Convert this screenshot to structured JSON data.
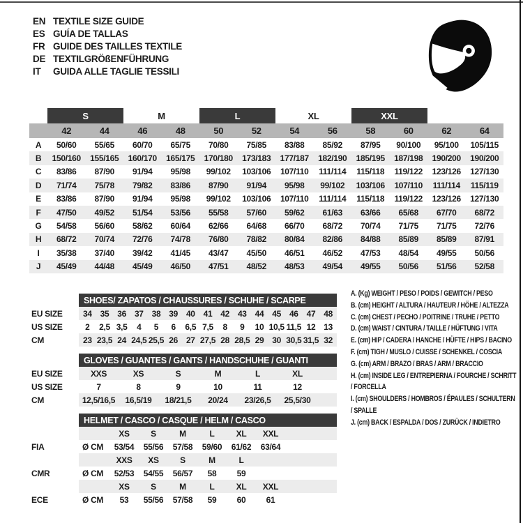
{
  "colors": {
    "dark_bar": "#3a3a3a",
    "header_band": "#b6b6b6",
    "row_stripe": "#ececec",
    "text": "#1c1c1c"
  },
  "header": {
    "languages": [
      {
        "code": "EN",
        "title": "TEXTILE SIZE GUIDE"
      },
      {
        "code": "ES",
        "title": "GUÍA DE TALLAS"
      },
      {
        "code": "FR",
        "title": "GUIDE DES TAILLES TEXTILE"
      },
      {
        "code": "DE",
        "title": "TEXTILGRÖßENFÜHRUNG"
      },
      {
        "code": "IT",
        "title": "GUIDA ALLE TAGLIE TESSILI"
      }
    ],
    "icon": "racing-helmet"
  },
  "main_table": {
    "group_headers": [
      {
        "label": "S",
        "boxed": true
      },
      {
        "label": "M",
        "boxed": false
      },
      {
        "label": "L",
        "boxed": true
      },
      {
        "label": "XL",
        "boxed": false
      },
      {
        "label": "XXL",
        "boxed": true
      }
    ],
    "sizes": [
      "42",
      "44",
      "46",
      "48",
      "50",
      "52",
      "54",
      "56",
      "58",
      "60",
      "62",
      "64"
    ],
    "rows": [
      {
        "label": "A",
        "values": [
          "50/60",
          "55/65",
          "60/70",
          "65/75",
          "70/80",
          "75/85",
          "83/88",
          "85/92",
          "87/95",
          "90/100",
          "95/100",
          "105/115"
        ]
      },
      {
        "label": "B",
        "values": [
          "150/160",
          "155/165",
          "160/170",
          "165/175",
          "170/180",
          "173/183",
          "177/187",
          "182/190",
          "185/195",
          "187/198",
          "190/200",
          "190/200"
        ]
      },
      {
        "label": "C",
        "values": [
          "83/86",
          "87/90",
          "91/94",
          "95/98",
          "99/102",
          "103/106",
          "107/110",
          "111/114",
          "115/118",
          "119/122",
          "123/126",
          "127/130"
        ]
      },
      {
        "label": "D",
        "values": [
          "71/74",
          "75/78",
          "79/82",
          "83/86",
          "87/90",
          "91/94",
          "95/98",
          "99/102",
          "103/106",
          "107/110",
          "111/114",
          "115/119"
        ]
      },
      {
        "label": "E",
        "values": [
          "83/86",
          "87/90",
          "91/94",
          "95/98",
          "99/102",
          "103/106",
          "107/110",
          "111/114",
          "115/118",
          "119/122",
          "123/126",
          "127/130"
        ]
      },
      {
        "label": "F",
        "values": [
          "47/50",
          "49/52",
          "51/54",
          "53/56",
          "55/58",
          "57/60",
          "59/62",
          "61/63",
          "63/66",
          "65/68",
          "67/70",
          "68/72"
        ]
      },
      {
        "label": "G",
        "values": [
          "54/58",
          "56/60",
          "58/62",
          "60/64",
          "62/66",
          "64/68",
          "66/70",
          "68/72",
          "70/74",
          "71/75",
          "71/75",
          "72/76"
        ]
      },
      {
        "label": "H",
        "values": [
          "68/72",
          "70/74",
          "72/76",
          "74/78",
          "76/80",
          "78/82",
          "80/84",
          "82/86",
          "84/88",
          "85/89",
          "85/89",
          "87/91"
        ]
      },
      {
        "label": "I",
        "values": [
          "35/38",
          "37/40",
          "39/42",
          "41/45",
          "43/47",
          "45/50",
          "46/51",
          "46/52",
          "47/53",
          "48/54",
          "49/55",
          "50/56"
        ]
      },
      {
        "label": "J",
        "values": [
          "45/49",
          "44/48",
          "45/49",
          "46/50",
          "47/51",
          "48/52",
          "48/53",
          "49/54",
          "49/55",
          "50/56",
          "51/56",
          "52/58"
        ]
      }
    ]
  },
  "shoes_table": {
    "title": "SHOES/ ZAPATOS / CHAUSSURES / SCHUHE / SCARPE",
    "rows": [
      {
        "label": "EU SIZE",
        "striped": true,
        "values": [
          "34",
          "35",
          "36",
          "37",
          "38",
          "39",
          "40",
          "41",
          "42",
          "43",
          "44",
          "45",
          "46",
          "47",
          "48"
        ]
      },
      {
        "label": "US SIZE",
        "striped": false,
        "values": [
          "2",
          "2,5",
          "3,5",
          "4",
          "5",
          "6",
          "6,5",
          "7,5",
          "8",
          "9",
          "10",
          "10,5",
          "11,5",
          "12",
          "13"
        ]
      },
      {
        "label": "CM",
        "striped": true,
        "values": [
          "23",
          "23,5",
          "24",
          "24,5",
          "25,5",
          "26",
          "27",
          "27,5",
          "28",
          "28,5",
          "29",
          "30",
          "30,5",
          "31,5",
          "32"
        ]
      }
    ]
  },
  "gloves_table": {
    "title": "GLOVES / GUANTES / GANTS / HANDSCHUHE / GUANTI",
    "rows": [
      {
        "label": "EU SIZE",
        "striped": true,
        "values": [
          "XXS",
          "XS",
          "S",
          "M",
          "L",
          "XL"
        ]
      },
      {
        "label": "US SIZE",
        "striped": false,
        "values": [
          "7",
          "8",
          "9",
          "10",
          "11",
          "12"
        ]
      },
      {
        "label": "CM",
        "striped": true,
        "values": [
          "12,5/16,5",
          "16,5/19",
          "18/21,5",
          "20/24",
          "23/26,5",
          "25,5/30"
        ]
      }
    ]
  },
  "helmet_table": {
    "title": "HELMET / CASCO / CASQUE / HELM / CASCO",
    "diameter_label": "Ø CM",
    "sections": [
      {
        "label": "FIA",
        "sizes": [
          "XS",
          "S",
          "M",
          "L",
          "XL",
          "XXL"
        ],
        "values": [
          "53/54",
          "55/56",
          "57/58",
          "59/60",
          "61/62",
          "63/64"
        ]
      },
      {
        "label": "CMR",
        "sizes": [
          "XXS",
          "XS",
          "S",
          "M",
          "L",
          ""
        ],
        "values": [
          "52/53",
          "54/55",
          "56/57",
          "58",
          "59",
          ""
        ]
      },
      {
        "label": "ECE",
        "sizes": [
          "XS",
          "S",
          "M",
          "L",
          "XL",
          "XXL"
        ],
        "values": [
          "53",
          "55/56",
          "57/58",
          "59",
          "60",
          "61"
        ]
      }
    ]
  },
  "legend": {
    "items": [
      "A. (Kg) WEIGHT / PESO / POIDS / GEWITCH / PESO",
      "B. (cm) HEIGHT / ALTURA / HAUTEUR / HÖHE / ALTEZZA",
      "C. (cm) CHEST / PECHO / POITRINE / TRUHE / PETTO",
      "D. (cm) WAIST / CINTURA / TAILLE / HÜFTUNG / VITA",
      "E. (cm) HIP / CADERA / HANCHE / HÜFTE / HIPS / BACINO",
      "F. (cm) TIGH / MUSLO / CUISSE / SCHENKEL / COSCIA",
      "G. (cm) ARM / BRAZO / BRAS / ARM / BRACCIO",
      "H. (cm) INSIDE LEG / ENTREPIERNA / FOURCHE / SCHRITT / FORCELLA",
      "I. (cm) SHOULDERS / HOMBROS / ÉPAULES / SCHULTERN / SPALLE",
      "J. (cm) BACK / ESPALDA / DOS / ZURÜCK / INDIETRO"
    ]
  }
}
